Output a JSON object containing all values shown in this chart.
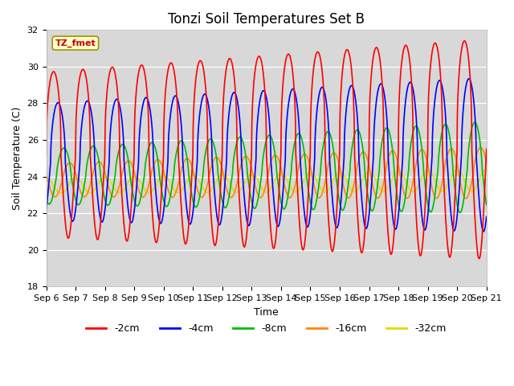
{
  "title": "Tonzi Soil Temperatures Set B",
  "xlabel": "Time",
  "ylabel": "Soil Temperature (C)",
  "ylim": [
    18,
    32
  ],
  "ytick_values": [
    18,
    20,
    22,
    24,
    26,
    28,
    30,
    32
  ],
  "ytick_labels": [
    "18",
    "20",
    "22",
    "24",
    "26",
    "28",
    "30",
    "32"
  ],
  "xtick_labels": [
    "Sep 6",
    "Sep 7",
    "Sep 8",
    "Sep 9",
    "Sep 10",
    "Sep 11",
    "Sep 12",
    "Sep 13",
    "Sep 14",
    "Sep 15",
    "Sep 16",
    "Sep 17",
    "Sep 18",
    "Sep 19",
    "Sep 20",
    "Sep 21"
  ],
  "annotation_text": "TZ_fmet",
  "plot_bg_color": "#d8d8d8",
  "series_colors": [
    "#ff0000",
    "#0000ff",
    "#00bb00",
    "#ff8800",
    "#dddd00"
  ],
  "series_labels": [
    "-2cm",
    "-4cm",
    "-8cm",
    "-16cm",
    "-32cm"
  ],
  "title_fontsize": 12,
  "axis_label_fontsize": 9,
  "tick_fontsize": 8
}
